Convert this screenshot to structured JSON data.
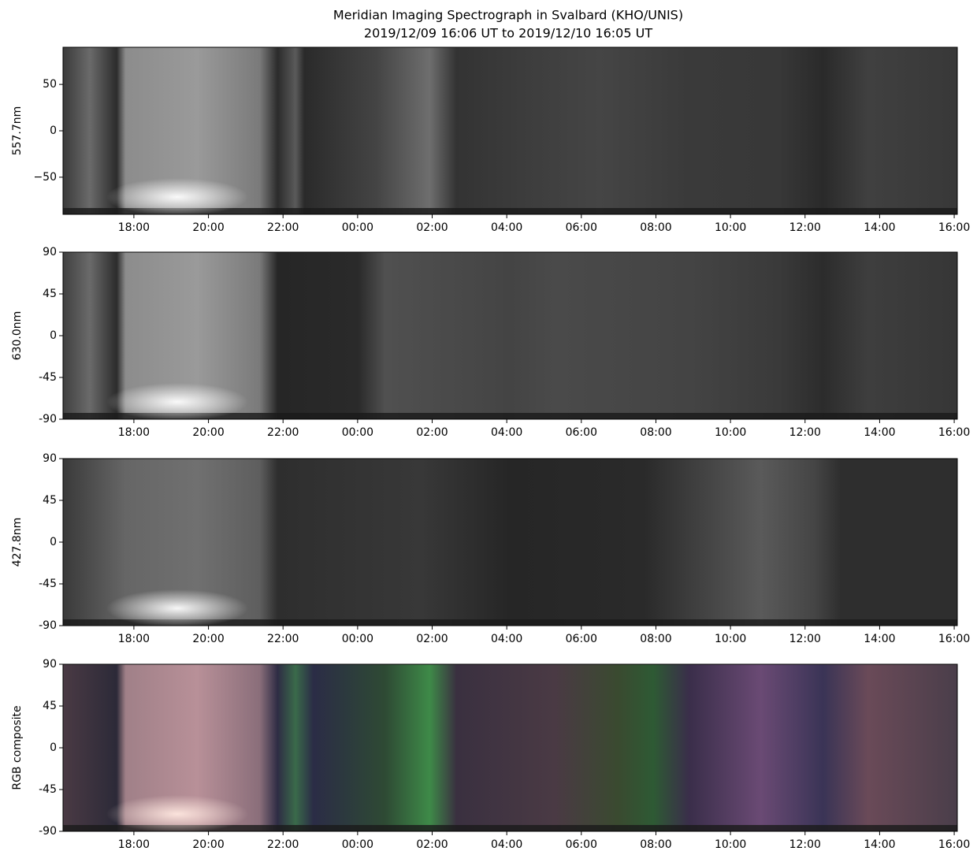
{
  "title": "Meridian Imaging Spectrograph in Svalbard (KHO/UNIS)",
  "subtitle": "2019/12/09 16:06 UT to 2019/12/10 16:05 UT",
  "chart_data": [
    {
      "type": "keogram",
      "ylabel": "557.7nm",
      "ylim": [
        -90,
        90
      ],
      "yticks": [
        50,
        0,
        {
          "value": -50,
          "label": "−50"
        }
      ],
      "xlim": [
        16.1,
        40.083
      ],
      "xticks": [
        {
          "value": 18,
          "label": "18:00"
        },
        {
          "value": 20,
          "label": "20:00"
        },
        {
          "value": 22,
          "label": "22:00"
        },
        {
          "value": 24,
          "label": "00:00"
        },
        {
          "value": 26,
          "label": "02:00"
        },
        {
          "value": 28,
          "label": "04:00"
        },
        {
          "value": 30,
          "label": "06:00"
        },
        {
          "value": 32,
          "label": "08:00"
        },
        {
          "value": 34,
          "label": "10:00"
        },
        {
          "value": 36,
          "label": "12:00"
        },
        {
          "value": 38,
          "label": "14:00"
        },
        {
          "value": 40,
          "label": "16:00"
        }
      ]
    },
    {
      "type": "keogram",
      "ylabel": "630.0nm",
      "ylim": [
        -90,
        90
      ],
      "yticks": [
        90,
        45,
        0,
        -45,
        -90
      ],
      "xlim": [
        16.1,
        40.083
      ],
      "xticks": [
        {
          "value": 18,
          "label": "18:00"
        },
        {
          "value": 20,
          "label": "20:00"
        },
        {
          "value": 22,
          "label": "22:00"
        },
        {
          "value": 24,
          "label": "00:00"
        },
        {
          "value": 26,
          "label": "02:00"
        },
        {
          "value": 28,
          "label": "04:00"
        },
        {
          "value": 30,
          "label": "06:00"
        },
        {
          "value": 32,
          "label": "08:00"
        },
        {
          "value": 34,
          "label": "10:00"
        },
        {
          "value": 36,
          "label": "12:00"
        },
        {
          "value": 38,
          "label": "14:00"
        },
        {
          "value": 40,
          "label": "16:00"
        }
      ]
    },
    {
      "type": "keogram",
      "ylabel": "427.8nm",
      "ylim": [
        -90,
        90
      ],
      "yticks": [
        90,
        45,
        0,
        -45,
        -90
      ],
      "xlim": [
        16.1,
        40.083
      ],
      "xticks": [
        {
          "value": 18,
          "label": "18:00"
        },
        {
          "value": 20,
          "label": "20:00"
        },
        {
          "value": 22,
          "label": "22:00"
        },
        {
          "value": 24,
          "label": "00:00"
        },
        {
          "value": 26,
          "label": "02:00"
        },
        {
          "value": 28,
          "label": "04:00"
        },
        {
          "value": 30,
          "label": "06:00"
        },
        {
          "value": 32,
          "label": "08:00"
        },
        {
          "value": 34,
          "label": "10:00"
        },
        {
          "value": 36,
          "label": "12:00"
        },
        {
          "value": 38,
          "label": "14:00"
        },
        {
          "value": 40,
          "label": "16:00"
        }
      ]
    },
    {
      "type": "keogram",
      "ylabel": "RGB composite",
      "ylim": [
        -90,
        90
      ],
      "yticks": [
        90,
        45,
        0,
        -45,
        -90
      ],
      "xlim": [
        16.1,
        40.083
      ],
      "xticks": [
        {
          "value": 18,
          "label": "18:00"
        },
        {
          "value": 20,
          "label": "20:00"
        },
        {
          "value": 22,
          "label": "22:00"
        },
        {
          "value": 24,
          "label": "00:00"
        },
        {
          "value": 26,
          "label": "02:00"
        },
        {
          "value": 28,
          "label": "04:00"
        },
        {
          "value": 30,
          "label": "06:00"
        },
        {
          "value": 32,
          "label": "08:00"
        },
        {
          "value": 34,
          "label": "10:00"
        },
        {
          "value": 36,
          "label": "12:00"
        },
        {
          "value": 38,
          "label": "14:00"
        },
        {
          "value": 40,
          "label": "16:00"
        }
      ]
    }
  ]
}
